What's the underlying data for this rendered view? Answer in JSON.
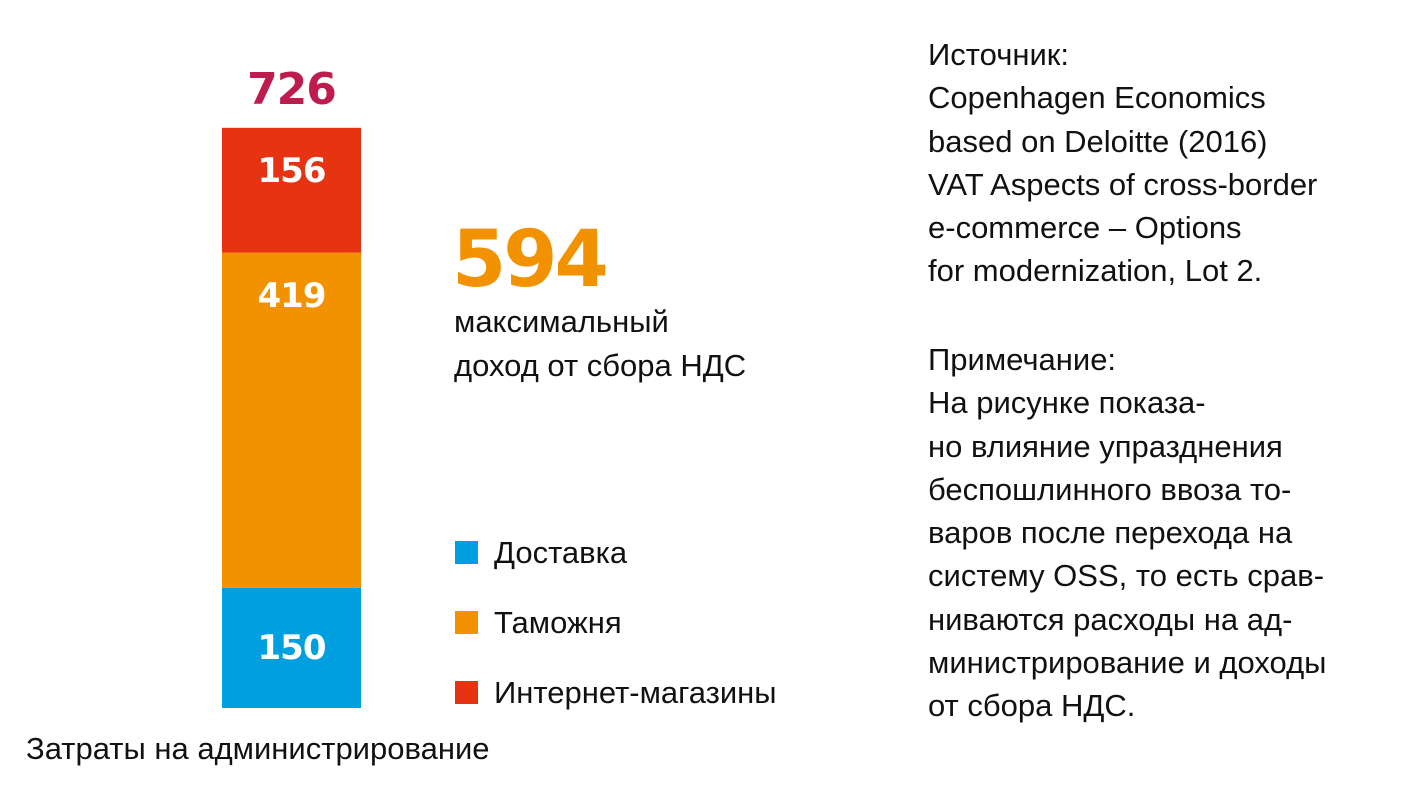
{
  "chart_data": {
    "type": "bar",
    "stacked": true,
    "categories": [
      "Затраты на администрирование"
    ],
    "series": [
      {
        "name": "Доставка",
        "values": [
          150
        ],
        "color": "#009fdf"
      },
      {
        "name": "Таможня",
        "values": [
          419
        ],
        "color": "#f39200"
      },
      {
        "name": "Интернет-магазины",
        "values": [
          156
        ],
        "color": "#e63312"
      }
    ],
    "total": {
      "value": 726,
      "color": "#be1b4f"
    },
    "xlabel": "Затраты на администрирование",
    "ylim": [
      0,
      726
    ],
    "grid": false,
    "legend_position": "right"
  },
  "highlight": {
    "value": "594",
    "color": "#f39200",
    "caption_lines": [
      "максимальный",
      "доход от сбора НДС"
    ]
  },
  "source": {
    "lines": [
      "Источник:",
      "Copenhagen Economics",
      "based on Deloitte (2016)",
      "VAT Aspects of cross-border",
      "e-commerce – Options",
      "for modernization, Lot 2."
    ]
  },
  "note": {
    "lines": [
      "Примечание:",
      "На рисунке показа-",
      "но влияние упразднения",
      "беспошлинного ввоза то-",
      "варов после перехода на",
      "систему OSS, то есть срав-",
      "ниваются расходы на ад-",
      "министрирование и доходы",
      "от сбора НДС."
    ]
  }
}
